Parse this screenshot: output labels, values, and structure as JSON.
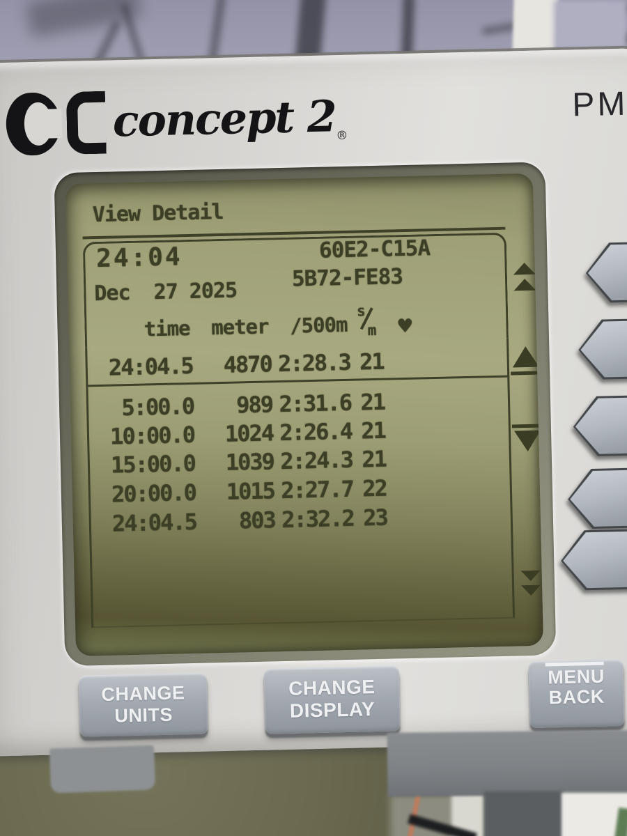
{
  "device": {
    "brand": "concept 2",
    "registered_mark": "®",
    "model_label": "PM"
  },
  "screen": {
    "title": "View Detail",
    "workout": {
      "total_time": "24:04",
      "date": "Dec  27 2025",
      "id_code_1": "60E2-C15A",
      "id_code_2": "5B72-FE83"
    },
    "table": {
      "headers": {
        "time": "time",
        "meter": "meter",
        "pace": "/500m",
        "spm_top": "s",
        "spm_bottom": "m",
        "heart_icon": "♥"
      },
      "summary": {
        "time": "24:04.5",
        "meter": "4870",
        "pace": "2:28.3",
        "spm": "21"
      },
      "rows": [
        {
          "time": "5:00.0",
          "meter": "989",
          "pace": "2:31.6",
          "spm": "21"
        },
        {
          "time": "10:00.0",
          "meter": "1024",
          "pace": "2:26.4",
          "spm": "21"
        },
        {
          "time": "15:00.0",
          "meter": "1039",
          "pace": "2:24.3",
          "spm": "21"
        },
        {
          "time": "20:00.0",
          "meter": "1015",
          "pace": "2:27.7",
          "spm": "22"
        },
        {
          "time": "24:04.5",
          "meter": "803",
          "pace": "2:32.2",
          "spm": "23"
        }
      ]
    },
    "scrollbar_indicators": [
      "page-up",
      "line-up",
      "line-down",
      "page-down"
    ]
  },
  "buttons": {
    "bottom": [
      {
        "line1": "CHANGE",
        "line2": "UNITS"
      },
      {
        "line1": "CHANGE",
        "line2": "DISPLAY"
      },
      {
        "line1": "MENU",
        "line2": "BACK"
      }
    ],
    "side_button_count": 5
  },
  "colors": {
    "lcd_background": "#a8a980",
    "lcd_ink": "#3c3f25",
    "device_face": "#d8d6d3",
    "button_gray": "#a4aab1",
    "logo_black": "#141416"
  }
}
